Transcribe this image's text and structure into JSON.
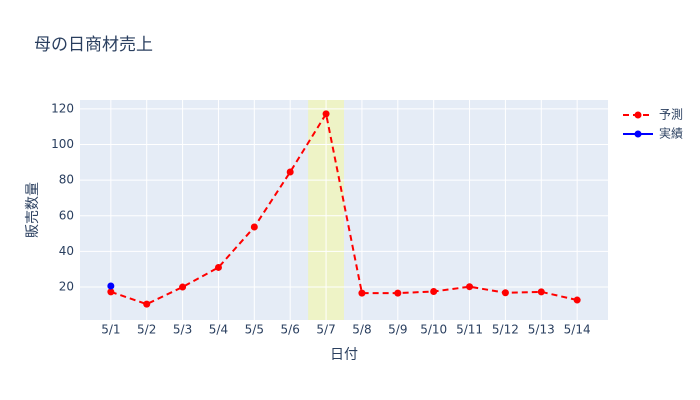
{
  "chart_data": {
    "type": "line",
    "title": "母の日商材売上",
    "x_label": "日付",
    "y_label": "販売数量",
    "categories": [
      "5/1",
      "5/2",
      "5/3",
      "5/4",
      "5/5",
      "5/6",
      "5/7",
      "5/8",
      "5/9",
      "5/10",
      "5/11",
      "5/12",
      "5/13",
      "5/14"
    ],
    "series": [
      {
        "name": "予測",
        "color": "#ff0000",
        "dash": true,
        "values": [
          17.3,
          10.4,
          20,
          31,
          53.7,
          84.6,
          117.2,
          16.6,
          16.6,
          17.5,
          20.2,
          16.8,
          17.3,
          12.7
        ]
      },
      {
        "name": "実績",
        "color": "#0000ff",
        "dash": false,
        "values": [
          20.6,
          null,
          null,
          null,
          null,
          null,
          null,
          null,
          null,
          null,
          null,
          null,
          null,
          null
        ]
      }
    ],
    "highlight": {
      "category": "5/7",
      "color": "#eef3c6"
    },
    "ylim": [
      1.5,
      125
    ],
    "yticks": [
      20,
      40,
      60,
      80,
      100,
      120
    ],
    "grid": true,
    "legend": "right"
  }
}
